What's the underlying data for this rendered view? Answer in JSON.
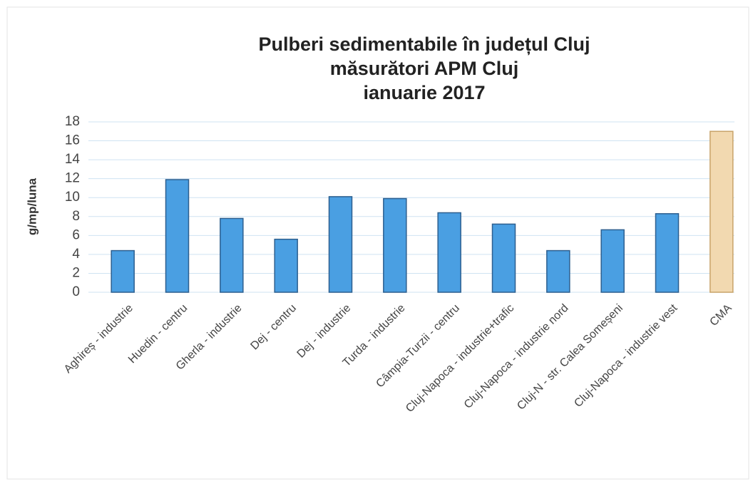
{
  "chart_data": {
    "type": "bar",
    "title": [
      "Pulberi sedimentabile în județul Cluj",
      "măsurători APM Cluj",
      "ianuarie 2017"
    ],
    "y_label": "g/mp/luna",
    "categories": [
      "Aghireș - industrie",
      "Huedin - centru",
      "Gherla - industrie",
      "Dej - centru",
      "Dej - industrie",
      "Turda - industrie",
      "Câmpia-Turzii - centru",
      "Cluj-Napoca - industrie+trafic",
      "Cluj-Napoca - industrie nord",
      "Cluj-N - str. Calea Someșeni",
      "Cluj-Napoca - industrie vest",
      "CMA"
    ],
    "values": [
      4.4,
      11.9,
      7.8,
      5.6,
      10.1,
      9.9,
      8.4,
      7.2,
      4.4,
      6.6,
      8.3,
      17
    ],
    "colors": [
      "#4a9fe2",
      "#4a9fe2",
      "#4a9fe2",
      "#4a9fe2",
      "#4a9fe2",
      "#4a9fe2",
      "#4a9fe2",
      "#4a9fe2",
      "#4a9fe2",
      "#4a9fe2",
      "#4a9fe2",
      "#f2d9b0"
    ],
    "ylim": [
      0,
      18
    ],
    "yticks": [
      0,
      2,
      4,
      6,
      8,
      10,
      12,
      14,
      16,
      18
    ],
    "grid": true
  }
}
